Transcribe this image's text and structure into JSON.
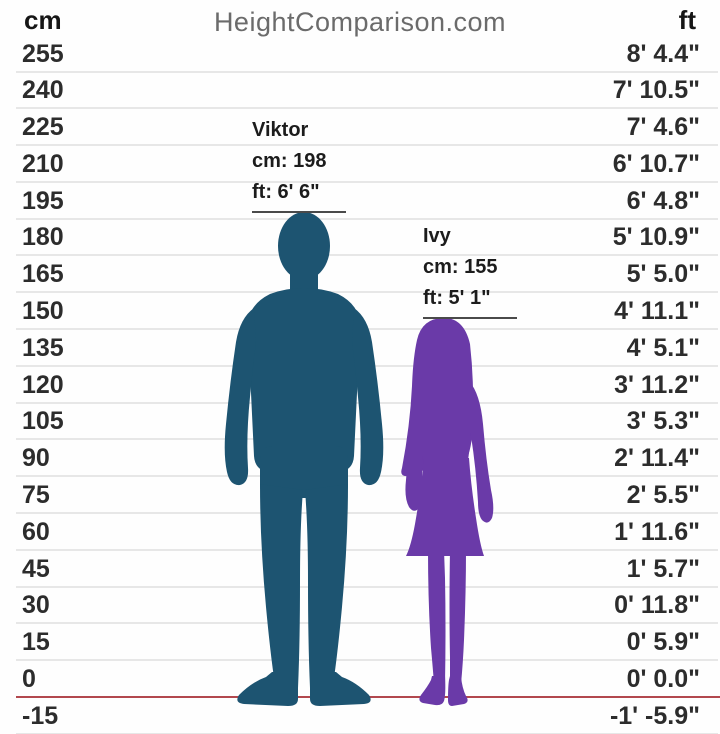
{
  "header": {
    "left_unit": "cm",
    "title": "HeightComparison.com",
    "right_unit": "ft"
  },
  "chart_data": {
    "type": "height-comparison",
    "title": "HeightComparison.com",
    "y_axis": {
      "unit_left": "cm",
      "unit_right": "ft",
      "min_cm": -15,
      "max_cm": 255,
      "step_cm": 15,
      "baseline_value": 0,
      "baseline_color": "#b2484e",
      "gridline_color": "#e7e7e7"
    },
    "rows": [
      {
        "cm": "255",
        "ft": "8' 4.4\""
      },
      {
        "cm": "240",
        "ft": "7' 10.5\""
      },
      {
        "cm": "225",
        "ft": "7' 4.6\""
      },
      {
        "cm": "210",
        "ft": "6' 10.7\""
      },
      {
        "cm": "195",
        "ft": "6' 4.8\""
      },
      {
        "cm": "180",
        "ft": "5' 10.9\""
      },
      {
        "cm": "165",
        "ft": "5' 5.0\""
      },
      {
        "cm": "150",
        "ft": "4' 11.1\""
      },
      {
        "cm": "135",
        "ft": "4' 5.1\""
      },
      {
        "cm": "120",
        "ft": "3' 11.2\""
      },
      {
        "cm": "105",
        "ft": "3' 5.3\""
      },
      {
        "cm": "90",
        "ft": "2' 11.4\""
      },
      {
        "cm": "75",
        "ft": "2' 5.5\""
      },
      {
        "cm": "60",
        "ft": "1' 11.6\""
      },
      {
        "cm": "45",
        "ft": "1' 5.7\""
      },
      {
        "cm": "30",
        "ft": "0' 11.8\""
      },
      {
        "cm": "15",
        "ft": "0' 5.9\""
      },
      {
        "cm": "0",
        "ft": "0' 0.0\""
      },
      {
        "cm": "-15",
        "ft": "-1' -5.9\""
      }
    ],
    "persons": [
      {
        "name": "Viktor",
        "height_cm": 198,
        "cm_text": "cm: 198",
        "ft_text": "ft: 6' 6\"",
        "color": "#1d5471",
        "sex": "male"
      },
      {
        "name": "Ivy",
        "height_cm": 155,
        "cm_text": "cm: 155",
        "ft_text": "ft: 5' 1\"",
        "color": "#6a3aa8",
        "sex": "female"
      }
    ]
  }
}
